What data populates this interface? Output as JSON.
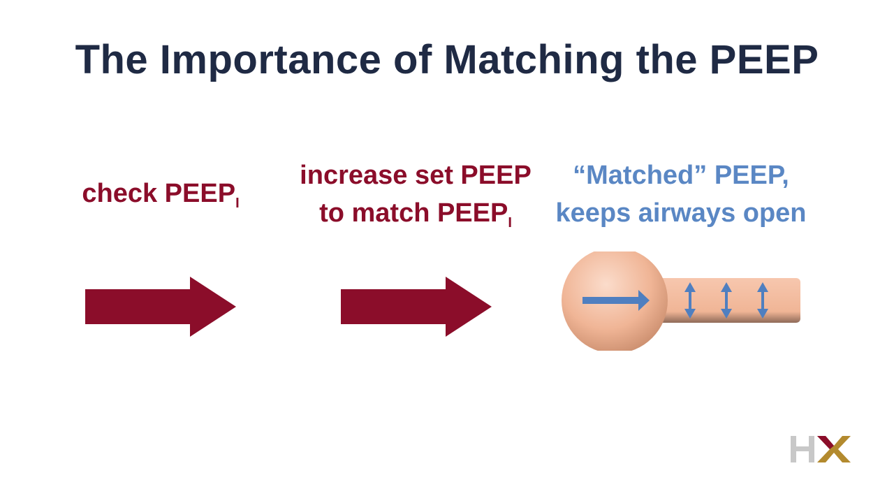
{
  "title": "The Importance of Matching the PEEP",
  "steps": [
    {
      "line1": "check PEEP",
      "sub1": "I"
    },
    {
      "line1": "increase set PEEP",
      "line2": "to match PEEP",
      "sub2": "I"
    },
    {
      "line1": "“Matched” PEEP,",
      "line2": "keeps airways open"
    }
  ],
  "logo": {
    "text": "HX"
  },
  "colors": {
    "title": "#1f2a44",
    "accent_red": "#8b0d2a",
    "accent_blue": "#5a87c4",
    "alveolus": "#f0b596",
    "logo_gray": "#c8c8c8",
    "logo_gold": "#b38a2e"
  }
}
